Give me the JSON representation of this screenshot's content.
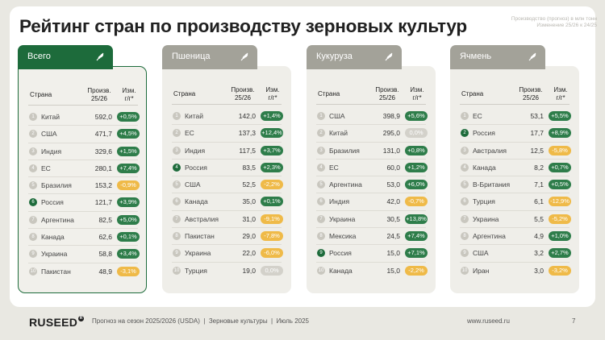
{
  "title": "Рейтинг стран по производству зерновых культур",
  "subtitle": "Производство (прогноз) в млн тонн\nИзменение 25/26 к 24/25",
  "columns": {
    "country": "Страна",
    "prod_line1": "Произв.",
    "prod_line2": "25/26",
    "chg_line1": "Изм.",
    "chg_line2": "г/г*"
  },
  "colors": {
    "accent": "#1d6b3b",
    "positive": "#2e7d4a",
    "negative": "#efba48",
    "neutral": "#d3d1ca",
    "tab_inactive": "#a3a299"
  },
  "cards": [
    {
      "tab": "Всего",
      "active": true,
      "rows": [
        {
          "rank": "1",
          "country": "Китай",
          "value": "592,0",
          "change": "+0,5%",
          "type": "pos"
        },
        {
          "rank": "2",
          "country": "США",
          "value": "471,7",
          "change": "+4,5%",
          "type": "pos"
        },
        {
          "rank": "3",
          "country": "Индия",
          "value": "329,6",
          "change": "+1,5%",
          "type": "pos"
        },
        {
          "rank": "4",
          "country": "ЕС",
          "value": "280,1",
          "change": "+7,4%",
          "type": "pos"
        },
        {
          "rank": "5",
          "country": "Бразилия",
          "value": "153,2",
          "change": "-0,9%",
          "type": "neg"
        },
        {
          "rank": "6",
          "country": "Россия",
          "value": "121,7",
          "change": "+3,9%",
          "type": "pos",
          "highlight": true
        },
        {
          "rank": "7",
          "country": "Аргентина",
          "value": "82,5",
          "change": "+5,0%",
          "type": "pos"
        },
        {
          "rank": "8",
          "country": "Канада",
          "value": "62,6",
          "change": "+0,1%",
          "type": "pos"
        },
        {
          "rank": "9",
          "country": "Украина",
          "value": "58,8",
          "change": "+3,4%",
          "type": "pos"
        },
        {
          "rank": "10",
          "country": "Пакистан",
          "value": "48,9",
          "change": "-3,1%",
          "type": "neg"
        }
      ]
    },
    {
      "tab": "Пшеница",
      "active": false,
      "rows": [
        {
          "rank": "1",
          "country": "Китай",
          "value": "142,0",
          "change": "+1,4%",
          "type": "pos"
        },
        {
          "rank": "2",
          "country": "ЕС",
          "value": "137,3",
          "change": "+12,4%",
          "type": "pos"
        },
        {
          "rank": "3",
          "country": "Индия",
          "value": "117,5",
          "change": "+3,7%",
          "type": "pos"
        },
        {
          "rank": "4",
          "country": "Россия",
          "value": "83,5",
          "change": "+2,3%",
          "type": "pos",
          "highlight": true
        },
        {
          "rank": "5",
          "country": "США",
          "value": "52,5",
          "change": "-2,2%",
          "type": "neg"
        },
        {
          "rank": "6",
          "country": "Канада",
          "value": "35,0",
          "change": "+0,1%",
          "type": "pos"
        },
        {
          "rank": "7",
          "country": "Австралия",
          "value": "31,0",
          "change": "-9,1%",
          "type": "neg"
        },
        {
          "rank": "8",
          "country": "Пакистан",
          "value": "29,0",
          "change": "-7,8%",
          "type": "neg"
        },
        {
          "rank": "9",
          "country": "Украина",
          "value": "22,0",
          "change": "-6,0%",
          "type": "neg"
        },
        {
          "rank": "10",
          "country": "Турция",
          "value": "19,0",
          "change": "0,0%",
          "type": "zero"
        }
      ]
    },
    {
      "tab": "Кукуруза",
      "active": false,
      "rows": [
        {
          "rank": "1",
          "country": "США",
          "value": "398,9",
          "change": "+5,6%",
          "type": "pos"
        },
        {
          "rank": "2",
          "country": "Китай",
          "value": "295,0",
          "change": "0,0%",
          "type": "zero"
        },
        {
          "rank": "3",
          "country": "Бразилия",
          "value": "131,0",
          "change": "+0,8%",
          "type": "pos"
        },
        {
          "rank": "4",
          "country": "ЕС",
          "value": "60,0",
          "change": "+1,2%",
          "type": "pos"
        },
        {
          "rank": "5",
          "country": "Аргентина",
          "value": "53,0",
          "change": "+6,0%",
          "type": "pos"
        },
        {
          "rank": "6",
          "country": "Индия",
          "value": "42,0",
          "change": "-0,7%",
          "type": "neg"
        },
        {
          "rank": "7",
          "country": "Украина",
          "value": "30,5",
          "change": "+13,8%",
          "type": "pos"
        },
        {
          "rank": "8",
          "country": "Мексика",
          "value": "24,5",
          "change": "+7,4%",
          "type": "pos"
        },
        {
          "rank": "9",
          "country": "Россия",
          "value": "15,0",
          "change": "+7,1%",
          "type": "pos",
          "highlight": true
        },
        {
          "rank": "10",
          "country": "Канада",
          "value": "15,0",
          "change": "-2,2%",
          "type": "neg"
        }
      ]
    },
    {
      "tab": "Ячмень",
      "active": false,
      "rows": [
        {
          "rank": "1",
          "country": "ЕС",
          "value": "53,1",
          "change": "+5,5%",
          "type": "pos"
        },
        {
          "rank": "2",
          "country": "Россия",
          "value": "17,7",
          "change": "+8,9%",
          "type": "pos",
          "highlight": true
        },
        {
          "rank": "3",
          "country": "Австралия",
          "value": "12,5",
          "change": "-5,8%",
          "type": "neg"
        },
        {
          "rank": "4",
          "country": "Канада",
          "value": "8,2",
          "change": "+0,7%",
          "type": "pos"
        },
        {
          "rank": "5",
          "country": "В-Британия",
          "value": "7,1",
          "change": "+0,5%",
          "type": "pos"
        },
        {
          "rank": "6",
          "country": "Турция",
          "value": "6,1",
          "change": "-12,9%",
          "type": "neg"
        },
        {
          "rank": "7",
          "country": "Украина",
          "value": "5,5",
          "change": "-5,2%",
          "type": "neg"
        },
        {
          "rank": "8",
          "country": "Аргентина",
          "value": "4,9",
          "change": "+1,0%",
          "type": "pos"
        },
        {
          "rank": "9",
          "country": "США",
          "value": "3,2",
          "change": "+2,7%",
          "type": "pos"
        },
        {
          "rank": "10",
          "country": "Иран",
          "value": "3,0",
          "change": "-3,2%",
          "type": "neg"
        }
      ]
    }
  ],
  "footer": {
    "logo": "RUSEED",
    "logo_mark": "R",
    "note": "Прогноз на сезон 2025/2026 (USDA)  |  Зерновые культуры  |  Июль 2025",
    "site": "www.ruseed.ru",
    "page": "7"
  }
}
